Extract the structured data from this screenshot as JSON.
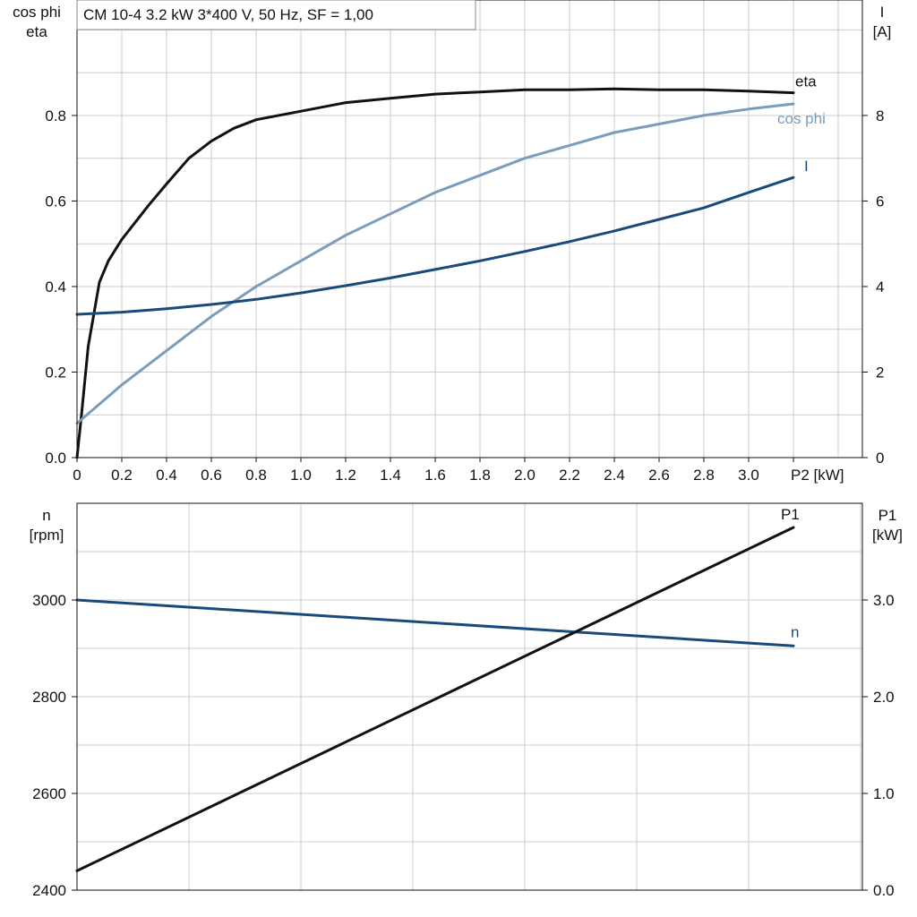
{
  "title": "CM 10-4   3.2 kW   3*400 V, 50 Hz, SF = 1,00",
  "colors": {
    "eta": "#111111",
    "cos_phi": "#7b9dbb",
    "I": "#1a4a7a",
    "n": "#1a4a7a",
    "P1": "#111111",
    "grid": "#cccccc"
  },
  "chart_data": [
    {
      "type": "line",
      "x_label": "P2 [kW]",
      "x_ticks": [
        "0",
        "0.2",
        "0.4",
        "0.6",
        "0.8",
        "1.0",
        "1.2",
        "1.4",
        "1.6",
        "1.8",
        "2.0",
        "2.2",
        "2.4",
        "2.6",
        "2.8",
        "3.0",
        "P2 [kW]"
      ],
      "xlim": [
        0,
        3.5
      ],
      "left_axis": {
        "label_line1": "cos phi",
        "label_line2": "eta",
        "ylim": [
          0,
          1.07
        ],
        "ticks": [
          "0.0",
          "0.2",
          "0.4",
          "0.6",
          "0.8"
        ]
      },
      "right_axis": {
        "label_line1": "I",
        "label_line2": "[A]",
        "ylim": [
          0,
          10.7
        ],
        "ticks": [
          "0",
          "2",
          "4",
          "6",
          "8"
        ]
      },
      "grid": true,
      "series": [
        {
          "name": "eta",
          "axis": "left",
          "color": "#111111",
          "x": [
            0,
            0.02,
            0.05,
            0.1,
            0.14,
            0.2,
            0.26,
            0.32,
            0.4,
            0.5,
            0.6,
            0.7,
            0.8,
            1.0,
            1.2,
            1.4,
            1.6,
            1.8,
            2.0,
            2.2,
            2.4,
            2.6,
            2.8,
            3.0,
            3.2
          ],
          "y": [
            0,
            0.1,
            0.26,
            0.41,
            0.46,
            0.51,
            0.55,
            0.59,
            0.64,
            0.7,
            0.74,
            0.77,
            0.79,
            0.81,
            0.83,
            0.84,
            0.85,
            0.855,
            0.86,
            0.86,
            0.862,
            0.86,
            0.86,
            0.857,
            0.853
          ]
        },
        {
          "name": "cos phi",
          "axis": "left",
          "color": "#7b9dbb",
          "x": [
            0,
            0.2,
            0.4,
            0.6,
            0.8,
            1.0,
            1.2,
            1.4,
            1.6,
            1.8,
            2.0,
            2.2,
            2.4,
            2.6,
            2.8,
            3.0,
            3.2
          ],
          "y": [
            0.08,
            0.17,
            0.25,
            0.33,
            0.4,
            0.46,
            0.52,
            0.57,
            0.62,
            0.66,
            0.7,
            0.73,
            0.76,
            0.78,
            0.8,
            0.815,
            0.827
          ]
        },
        {
          "name": "I",
          "axis": "right",
          "color": "#1a4a7a",
          "x": [
            0,
            0.2,
            0.4,
            0.6,
            0.8,
            1.0,
            1.2,
            1.4,
            1.6,
            1.8,
            2.0,
            2.2,
            2.4,
            2.6,
            2.8,
            3.0,
            3.2
          ],
          "y": [
            3.35,
            3.4,
            3.48,
            3.58,
            3.7,
            3.85,
            4.02,
            4.2,
            4.4,
            4.6,
            4.82,
            5.05,
            5.3,
            5.57,
            5.84,
            6.2,
            6.55
          ]
        }
      ]
    },
    {
      "type": "line",
      "x_range": [
        0,
        3.5
      ],
      "left_axis": {
        "label_line1": "n",
        "label_line2": "[rpm]",
        "ylim": [
          2400,
          3200
        ],
        "ticks": [
          "2400",
          "2600",
          "2800",
          "3000"
        ]
      },
      "right_axis": {
        "label_line1": "P1",
        "label_line2": "[kW]",
        "ylim": [
          0,
          4.0
        ],
        "ticks": [
          "0.0",
          "1.0",
          "2.0",
          "3.0"
        ]
      },
      "grid": true,
      "series": [
        {
          "name": "n",
          "axis": "left",
          "color": "#1a4a7a",
          "x": [
            0,
            3.2
          ],
          "y": [
            3000,
            2905
          ]
        },
        {
          "name": "P1",
          "axis": "right",
          "color": "#111111",
          "x": [
            0,
            3.2
          ],
          "y": [
            0.2,
            3.75
          ]
        }
      ]
    }
  ]
}
